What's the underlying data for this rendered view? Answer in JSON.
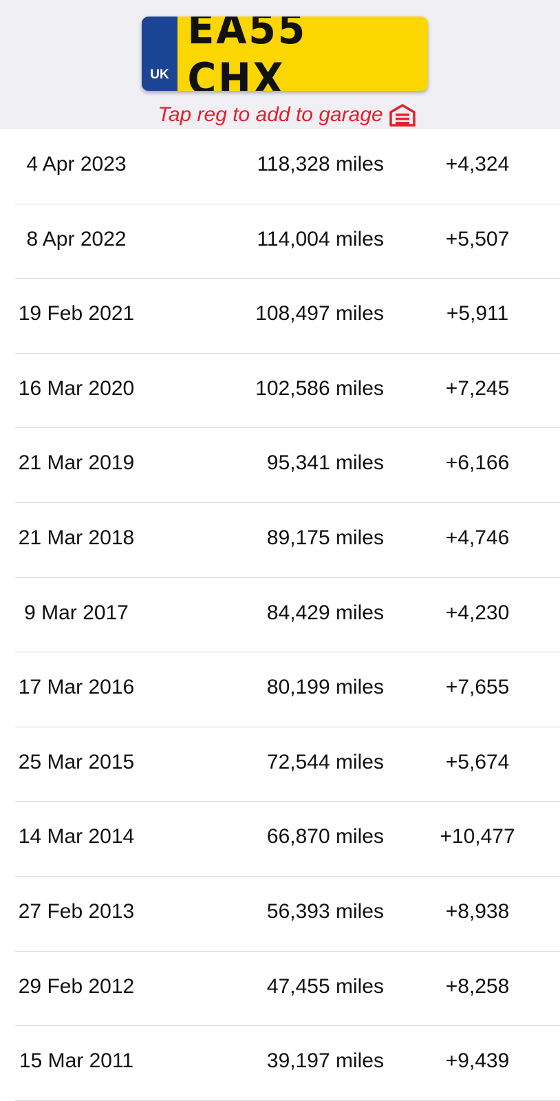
{
  "plate": {
    "country": "UK",
    "registration": "EA55 CHX",
    "band_color": "#1c4494",
    "plate_color": "#fbd600"
  },
  "hint": {
    "text": "Tap reg to add to garage",
    "icon": "garage-icon",
    "color": "#e5202a"
  },
  "rows": [
    {
      "date": "4 Apr 2023",
      "mileage": "118,328 miles",
      "diff": "+4,324"
    },
    {
      "date": "8 Apr 2022",
      "mileage": "114,004 miles",
      "diff": "+5,507"
    },
    {
      "date": "19 Feb 2021",
      "mileage": "108,497 miles",
      "diff": "+5,911"
    },
    {
      "date": "16 Mar 2020",
      "mileage": "102,586 miles",
      "diff": "+7,245"
    },
    {
      "date": "21 Mar 2019",
      "mileage": "95,341 miles",
      "diff": "+6,166"
    },
    {
      "date": "21 Mar 2018",
      "mileage": "89,175 miles",
      "diff": "+4,746"
    },
    {
      "date": "9 Mar 2017",
      "mileage": "84,429 miles",
      "diff": "+4,230"
    },
    {
      "date": "17 Mar 2016",
      "mileage": "80,199 miles",
      "diff": "+7,655"
    },
    {
      "date": "25 Mar 2015",
      "mileage": "72,544 miles",
      "diff": "+5,674"
    },
    {
      "date": "14 Mar 2014",
      "mileage": "66,870 miles",
      "diff": "+10,477"
    },
    {
      "date": "27 Feb 2013",
      "mileage": "56,393 miles",
      "diff": "+8,938"
    },
    {
      "date": "29 Feb 2012",
      "mileage": "47,455 miles",
      "diff": "+8,258"
    },
    {
      "date": "15 Mar 2011",
      "mileage": "39,197 miles",
      "diff": "+9,439"
    }
  ]
}
